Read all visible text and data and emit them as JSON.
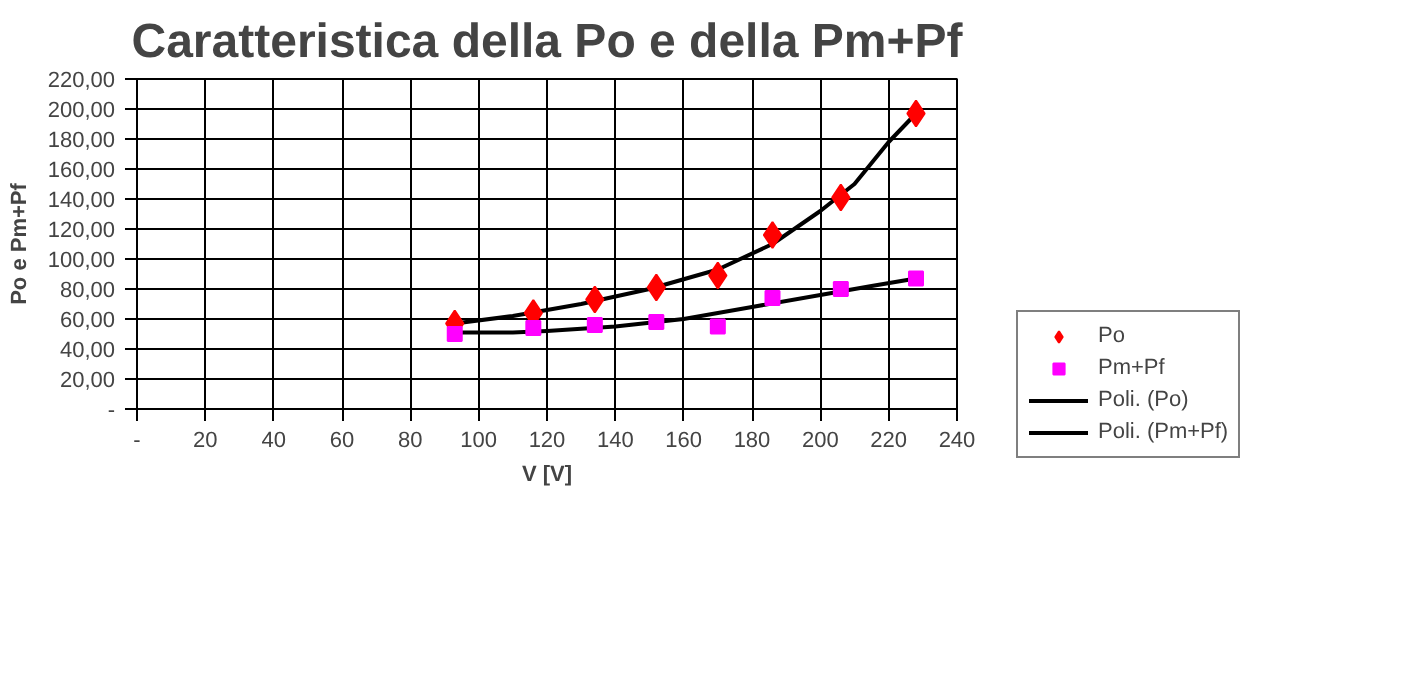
{
  "chart_data": {
    "type": "scatter",
    "title": "Caratteristica della Po e della Pm+Pf",
    "xlabel": "V [V]",
    "ylabel": "Po e Pm+Pf",
    "x": [
      93,
      116,
      134,
      152,
      170,
      186,
      206,
      228
    ],
    "series": [
      {
        "name": "Po",
        "color": "#ff0000",
        "marker": "diamond",
        "values": [
          57,
          64,
          73,
          81,
          89,
          116,
          141,
          197
        ]
      },
      {
        "name": "Pm+Pf",
        "color": "#ff00ff",
        "marker": "square",
        "values": [
          50,
          54,
          56,
          58,
          55,
          74,
          80,
          87
        ]
      },
      {
        "name": "Poli. (Po)",
        "type": "line",
        "color": "#000000",
        "marker": "none",
        "line_style": "solid",
        "x": [
          93,
          110,
          130,
          150,
          170,
          186,
          200,
          210,
          220,
          228
        ],
        "values": [
          57,
          62,
          70,
          80,
          93,
          110,
          132,
          150,
          178,
          197
        ]
      },
      {
        "name": "Poli. (Pm+Pf)",
        "type": "line",
        "color": "#000000",
        "marker": "none",
        "line_style": "solid",
        "x": [
          93,
          110,
          120,
          140,
          160,
          180,
          200,
          215,
          228
        ],
        "values": [
          51,
          51,
          52,
          55,
          60,
          68,
          76,
          82,
          87
        ]
      }
    ],
    "xlim": [
      0,
      240
    ],
    "ylim": [
      0,
      220
    ],
    "xticks": [
      {
        "value": 0,
        "label": "-"
      },
      20,
      40,
      60,
      80,
      100,
      120,
      140,
      160,
      180,
      200,
      220,
      240
    ],
    "yticks": [
      {
        "value": 0,
        "label": "-"
      },
      {
        "value": 20,
        "label": "20,00"
      },
      {
        "value": 40,
        "label": "40,00"
      },
      {
        "value": 60,
        "label": "60,00"
      },
      {
        "value": 80,
        "label": "80,00"
      },
      {
        "value": 100,
        "label": "100,00"
      },
      {
        "value": 120,
        "label": "120,00"
      },
      {
        "value": 140,
        "label": "140,00"
      },
      {
        "value": 160,
        "label": "160,00"
      },
      {
        "value": 180,
        "label": "180,00"
      },
      {
        "value": 200,
        "label": "200,00"
      },
      {
        "value": 220,
        "label": "220,00"
      }
    ],
    "grid": true,
    "legend": "right"
  }
}
